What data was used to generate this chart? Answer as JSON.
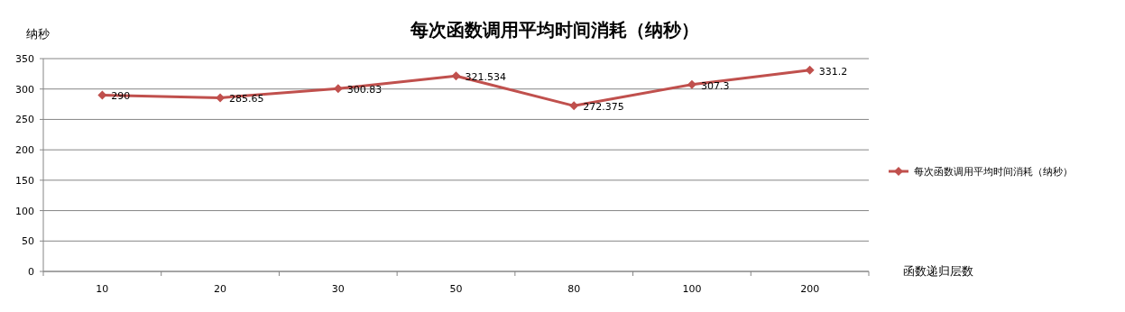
{
  "chart_data": {
    "type": "line",
    "title": "每次函数调用平均时间消耗（纳秒）",
    "ylabel": "纳秒",
    "xlabel": "函数递归层数",
    "categories": [
      "10",
      "20",
      "30",
      "50",
      "80",
      "100",
      "200"
    ],
    "series": [
      {
        "name": "每次函数调用平均时间消耗（纳秒）",
        "color": "#c0504d",
        "values": [
          290,
          285.65,
          300.83,
          321.534,
          272.375,
          307.3,
          331.2
        ]
      }
    ],
    "ylim": [
      0,
      350
    ],
    "yticks": [
      0,
      50,
      100,
      150,
      200,
      250,
      300,
      350
    ],
    "grid": "y",
    "legend": "right",
    "marker": "diamond",
    "line_style": "solid",
    "data_labels": true
  }
}
